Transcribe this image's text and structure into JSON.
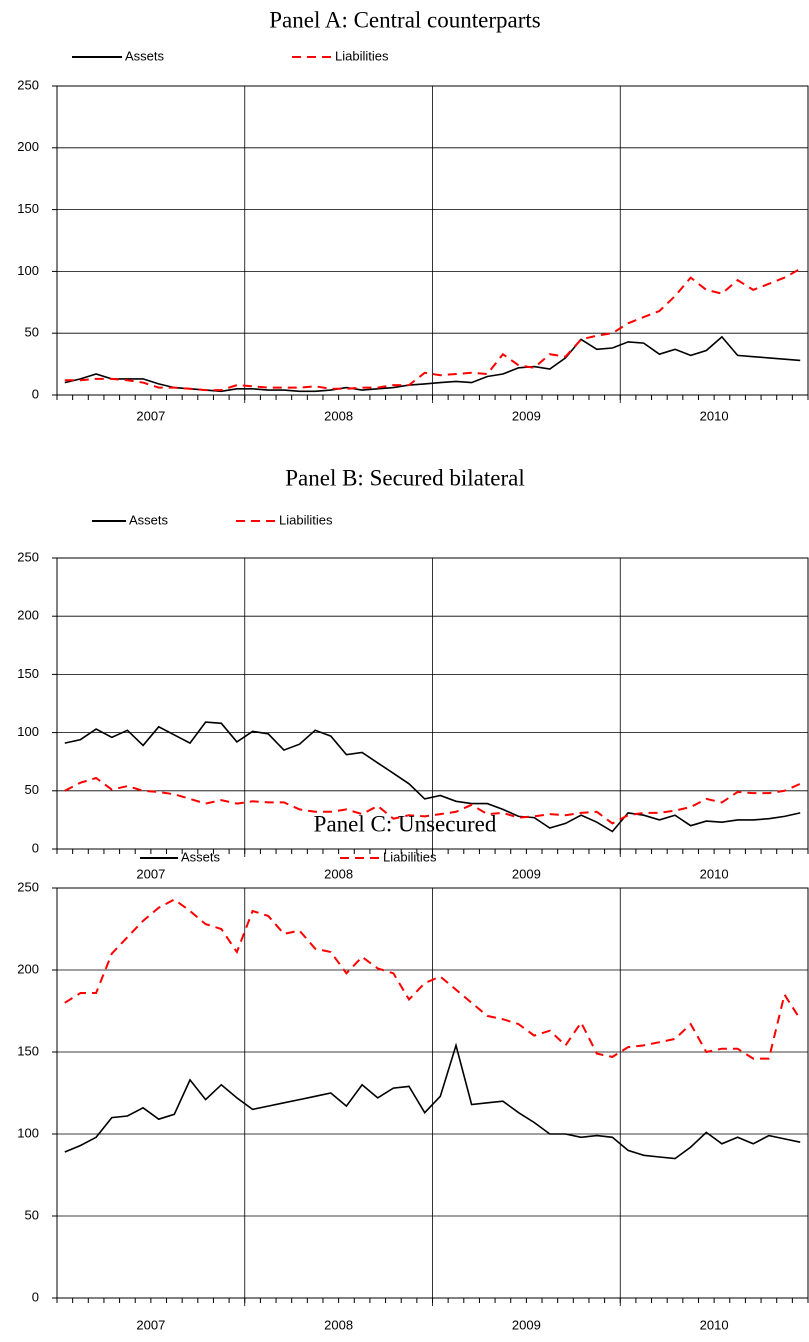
{
  "chart_data": [
    {
      "type": "line",
      "title": "Panel A: Central counterparts",
      "year_labels": [
        "2007",
        "2008",
        "2009",
        "2010"
      ],
      "ylim": [
        0,
        250
      ],
      "yticks": [
        0,
        50,
        100,
        150,
        200,
        250
      ],
      "grid": true,
      "legend": "top",
      "series": [
        {
          "name": "Assets",
          "color": "#000000",
          "line_style": "solid",
          "values": [
            10,
            13,
            17,
            13,
            13,
            13,
            9,
            6,
            5,
            4,
            3,
            5,
            5,
            4,
            4,
            3,
            3,
            4,
            6,
            4,
            5,
            6,
            8,
            9,
            10,
            11,
            10,
            15,
            17,
            22,
            23,
            21,
            30,
            45,
            37,
            38,
            43,
            42,
            33,
            37,
            32,
            36,
            47,
            32,
            31,
            30,
            29,
            28
          ]
        },
        {
          "name": "Liabilities",
          "color": "#ff0000",
          "line_style": "dashed",
          "values": [
            12,
            12,
            13,
            13,
            12,
            10,
            6,
            6,
            5,
            4,
            4,
            8,
            7,
            6,
            6,
            6,
            7,
            5,
            5,
            6,
            6,
            8,
            8,
            18,
            16,
            17,
            18,
            17,
            33,
            24,
            22,
            33,
            31,
            45,
            48,
            50,
            58,
            63,
            68,
            80,
            95,
            85,
            82,
            93,
            85,
            90,
            95,
            102
          ]
        }
      ]
    },
    {
      "type": "line",
      "title": "Panel B: Secured bilateral",
      "year_labels": [
        "2007",
        "2008",
        "2009",
        "2010"
      ],
      "ylim": [
        0,
        250
      ],
      "yticks": [
        0,
        50,
        100,
        150,
        200,
        250
      ],
      "grid": true,
      "legend": "top",
      "series": [
        {
          "name": "Assets",
          "color": "#000000",
          "line_style": "solid",
          "values": [
            91,
            94,
            103,
            96,
            102,
            89,
            105,
            98,
            91,
            109,
            108,
            92,
            101,
            99,
            85,
            90,
            102,
            97,
            81,
            83,
            74,
            65,
            56,
            43,
            46,
            41,
            39,
            39,
            34,
            28,
            27,
            18,
            22,
            29,
            23,
            15,
            31,
            29,
            25,
            29,
            20,
            24,
            23,
            25,
            25,
            26,
            28,
            31
          ]
        },
        {
          "name": "Liabilities",
          "color": "#ff0000",
          "line_style": "dashed",
          "values": [
            50,
            57,
            61,
            51,
            54,
            50,
            49,
            47,
            43,
            39,
            42,
            39,
            41,
            40,
            40,
            34,
            32,
            32,
            34,
            30,
            37,
            26,
            29,
            28,
            30,
            32,
            38,
            30,
            31,
            27,
            28,
            30,
            29,
            31,
            32,
            22,
            29,
            31,
            31,
            33,
            36,
            43,
            40,
            49,
            48,
            48,
            50,
            56
          ]
        }
      ]
    },
    {
      "type": "line",
      "title": "Panel C: Unsecured",
      "year_labels": [
        "2007",
        "2008",
        "2009",
        "2010"
      ],
      "ylim": [
        0,
        250
      ],
      "yticks": [
        0,
        50,
        100,
        150,
        200,
        250
      ],
      "grid": true,
      "legend": "top",
      "series": [
        {
          "name": "Assets",
          "color": "#000000",
          "line_style": "solid",
          "values": [
            89,
            93,
            98,
            110,
            111,
            116,
            109,
            112,
            133,
            121,
            130,
            122,
            115,
            117,
            119,
            121,
            123,
            125,
            117,
            130,
            122,
            128,
            129,
            113,
            123,
            154,
            118,
            119,
            120,
            113,
            107,
            100,
            100,
            98,
            99,
            98,
            90,
            87,
            86,
            85,
            92,
            101,
            94,
            98,
            94,
            99,
            97,
            95
          ]
        },
        {
          "name": "Liabilities",
          "color": "#ff0000",
          "line_style": "dashed",
          "values": [
            180,
            186,
            186,
            210,
            220,
            230,
            238,
            243,
            236,
            228,
            225,
            211,
            236,
            233,
            222,
            224,
            213,
            211,
            198,
            208,
            201,
            198,
            182,
            192,
            196,
            188,
            180,
            172,
            170,
            167,
            160,
            163,
            154,
            168,
            149,
            147,
            153,
            154,
            156,
            158,
            167,
            150,
            152,
            152,
            146,
            146,
            185,
            170
          ]
        }
      ]
    }
  ]
}
